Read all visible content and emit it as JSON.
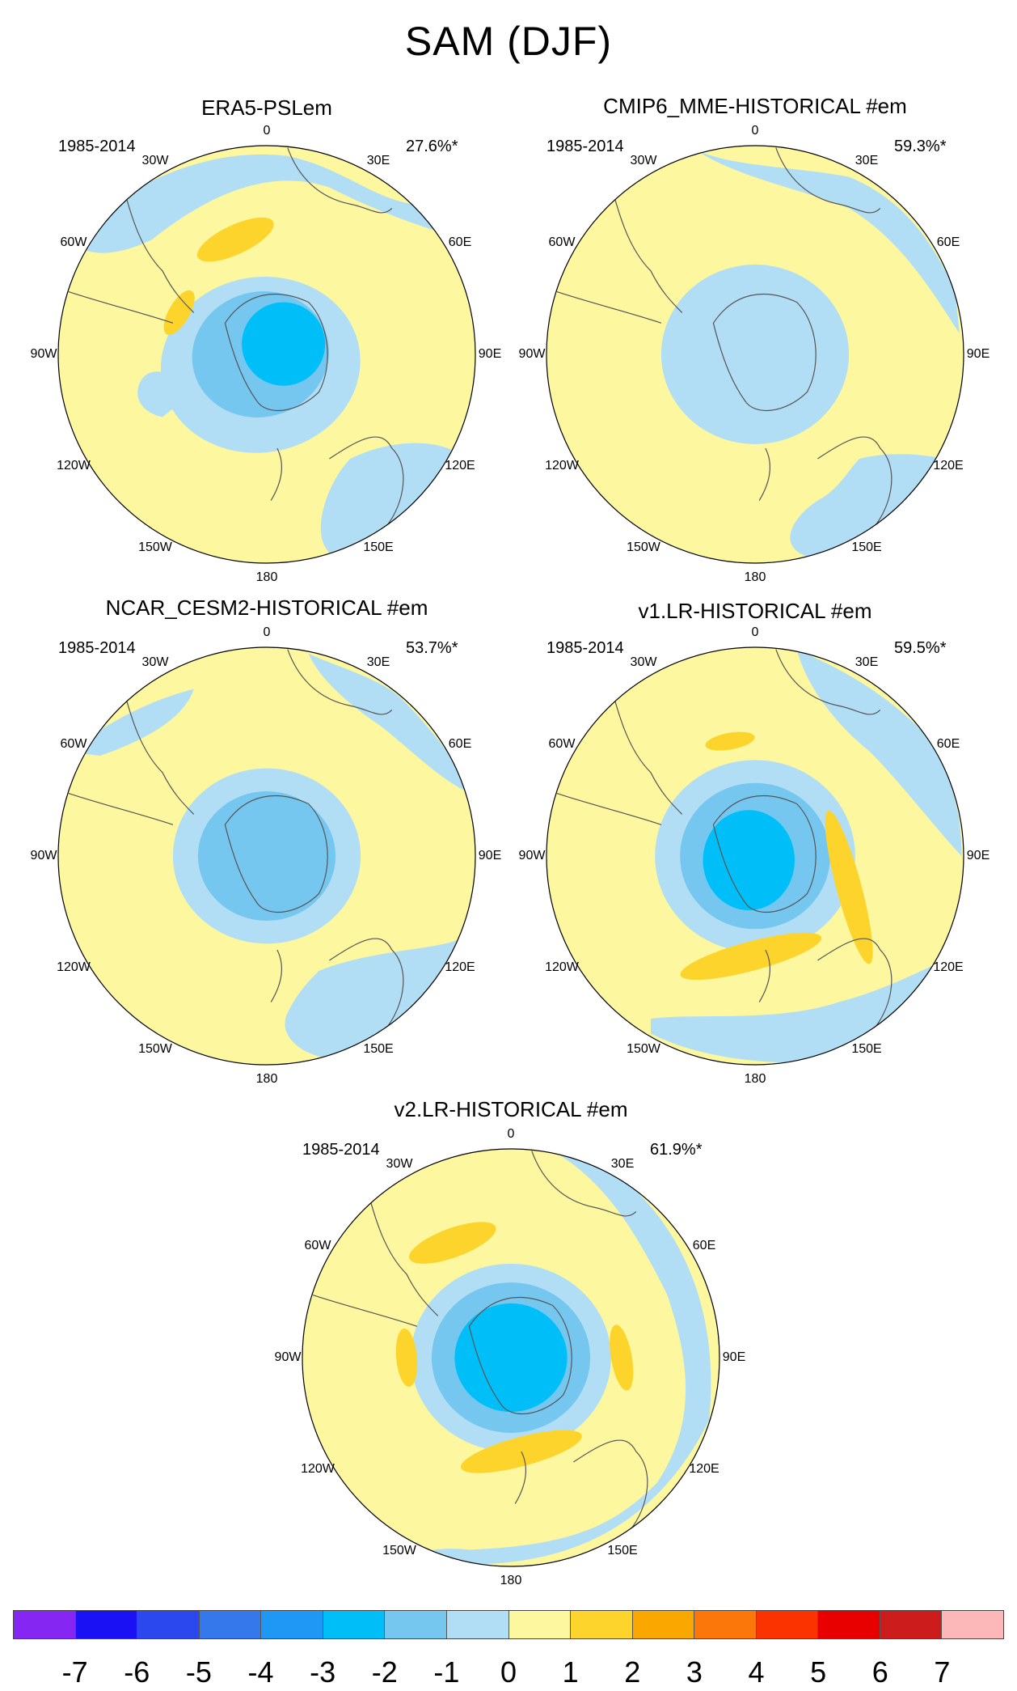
{
  "title": "SAM (DJF)",
  "longitude_labels": [
    "0",
    "30E",
    "60E",
    "90E",
    "120E",
    "150E",
    "180",
    "150W",
    "120W",
    "90W",
    "60W",
    "30W"
  ],
  "panels": [
    {
      "title": "ERA5-PSLem",
      "period": "1985-2014",
      "percent": "27.6%*",
      "pattern": "era5"
    },
    {
      "title": "CMIP6_MME-HISTORICAL  #em",
      "period": "1985-2014",
      "percent": "59.3%*",
      "pattern": "mme"
    },
    {
      "title": "NCAR_CESM2-HISTORICAL  #em",
      "period": "1985-2014",
      "percent": "53.7%*",
      "pattern": "cesm2"
    },
    {
      "title": "v1.LR-HISTORICAL  #em",
      "period": "1985-2014",
      "percent": "59.5%*",
      "pattern": "v1"
    },
    {
      "title": "v2.LR-HISTORICAL  #em",
      "period": "1985-2014",
      "percent": "61.9%*",
      "pattern": "v2"
    }
  ],
  "colorbar": {
    "colors": [
      "#8526f2",
      "#1a12f5",
      "#2b47ee",
      "#3578eb",
      "#1f98f5",
      "#00bff8",
      "#76c7f0",
      "#b2def5",
      "#fdf7a0",
      "#fdd42c",
      "#faa800",
      "#fb7709",
      "#fb3300",
      "#e80000",
      "#cc1c1c",
      "#fcb8b8"
    ],
    "labels": [
      "-7",
      "-6",
      "-5",
      "-4",
      "-3",
      "-2",
      "-1",
      "0",
      "1",
      "2",
      "3",
      "4",
      "5",
      "6",
      "7"
    ]
  }
}
